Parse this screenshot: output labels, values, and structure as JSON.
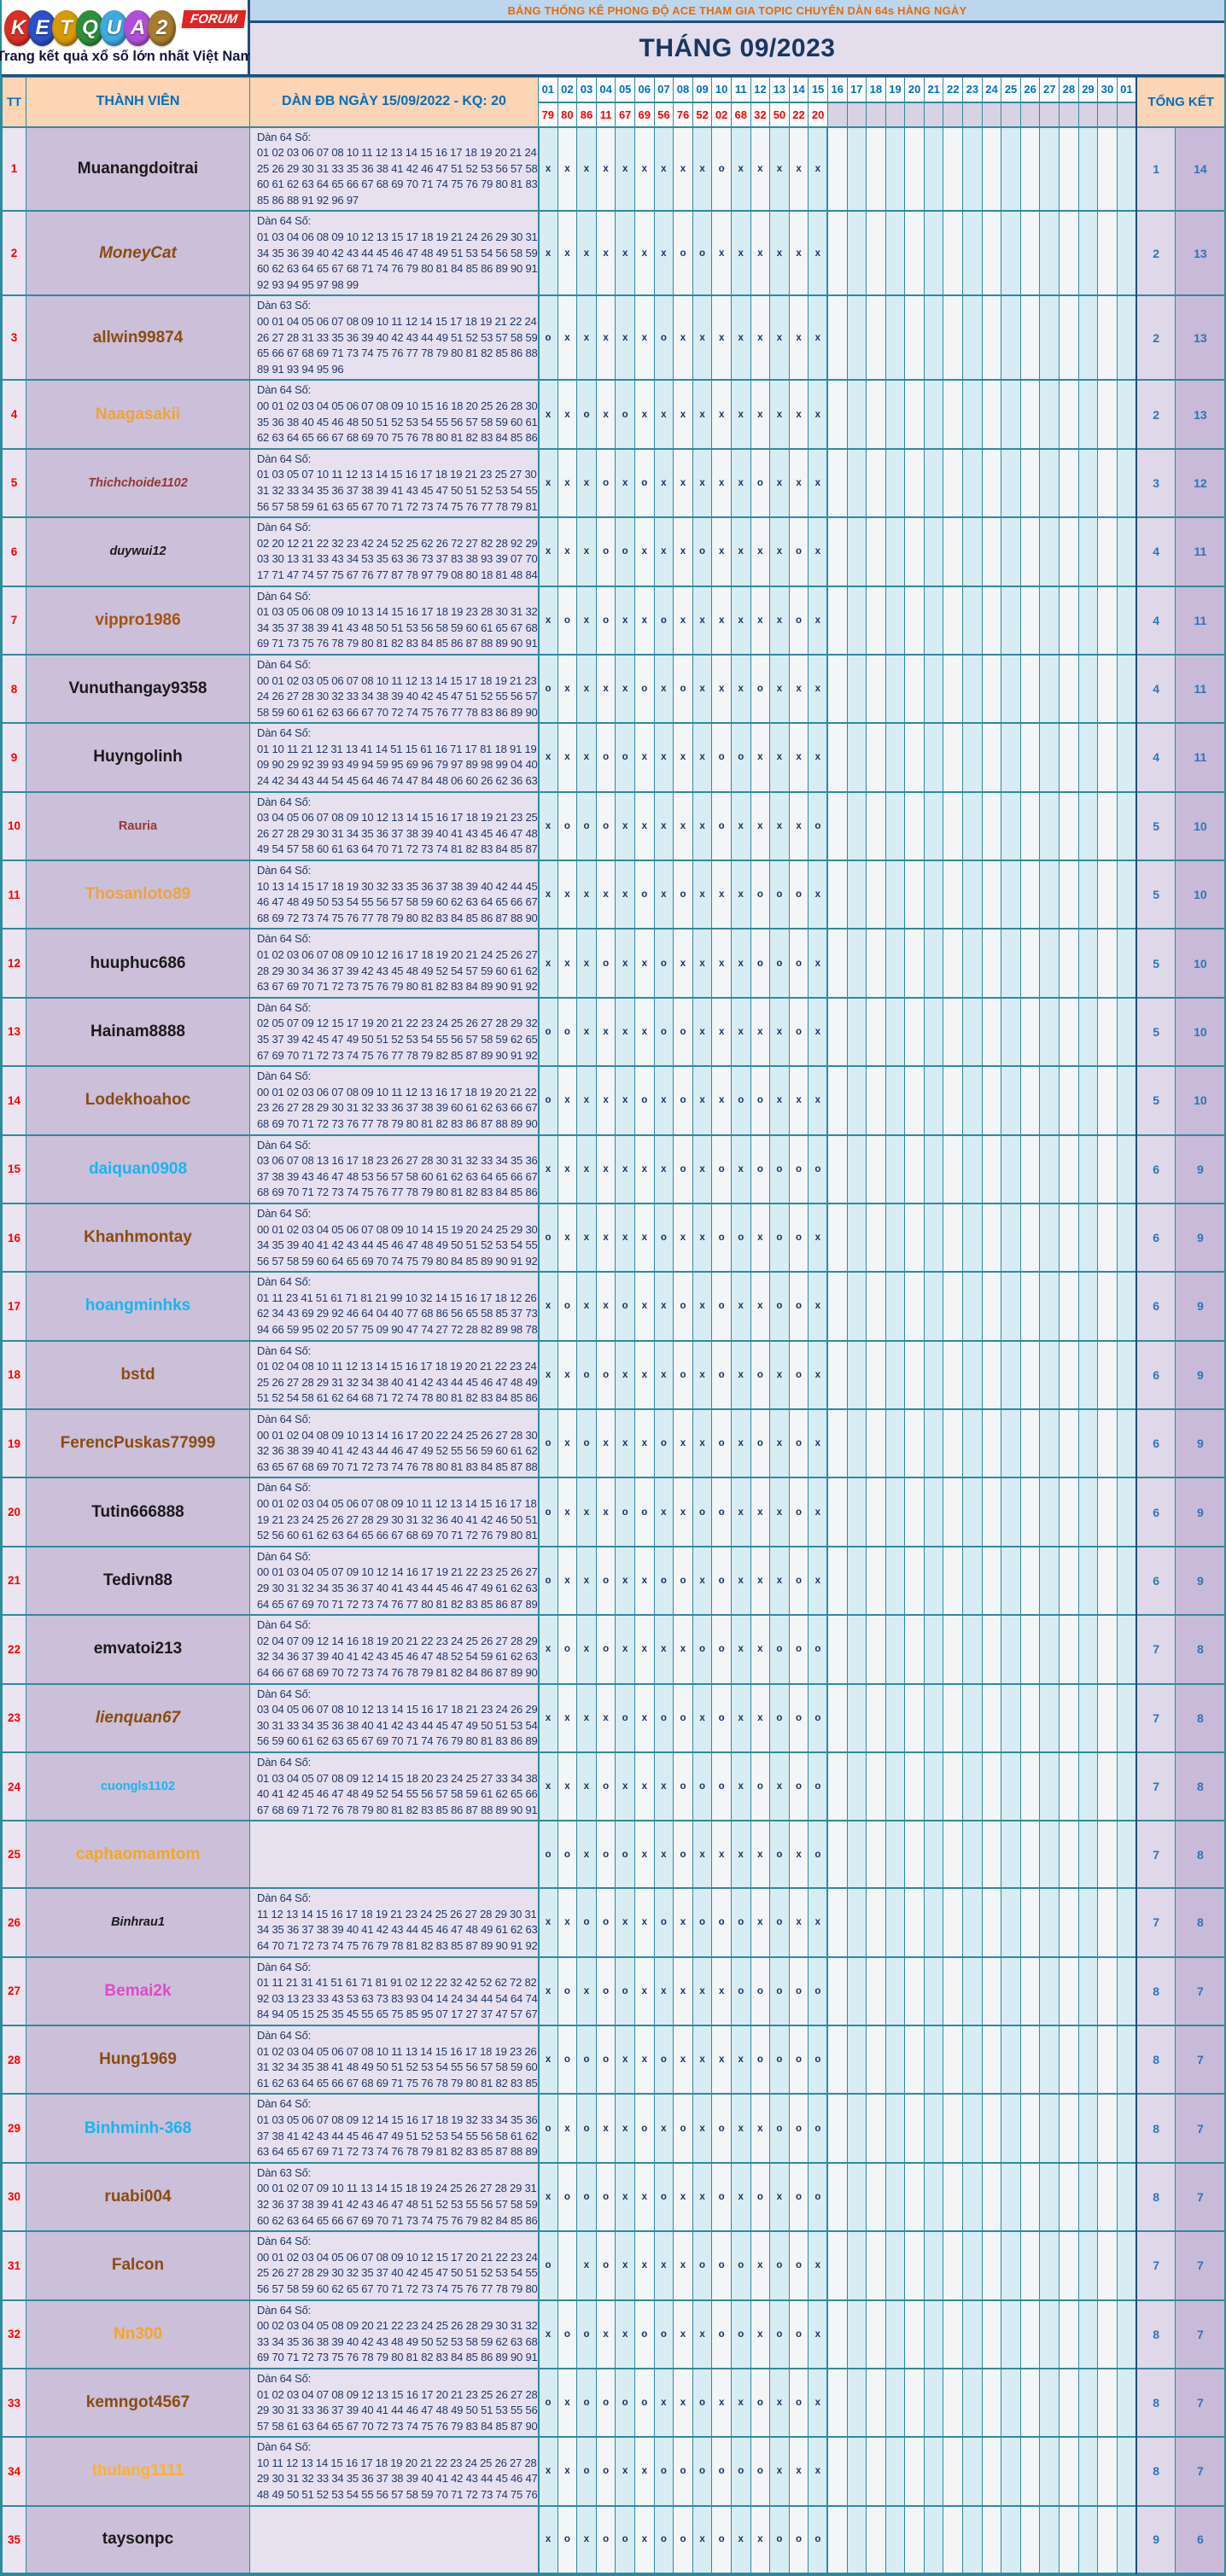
{
  "logo": {
    "brand": "KETQUA2",
    "letters": [
      {
        "ch": "K",
        "color": "#D93025"
      },
      {
        "ch": "E",
        "color": "#2B50C8"
      },
      {
        "ch": "T",
        "color": "#D79A00"
      },
      {
        "ch": "Q",
        "color": "#2E8F3A"
      },
      {
        "ch": "U",
        "color": "#3FA9E0"
      },
      {
        "ch": "A",
        "color": "#B04FD9"
      },
      {
        "ch": "2",
        "color": "#A67C2E"
      }
    ],
    "forum": "FORUM",
    "tagline": "Trang kết quả xổ số lớn nhất Việt Nam"
  },
  "banner": {
    "title": "BẢNG THỐNG KÊ PHONG ĐỘ ACE THAM GIA TOPIC CHUYÊN DÀN 64s HÀNG NGÀY",
    "month": "THÁNG 09/2023"
  },
  "table": {
    "headers": {
      "tt": "TT",
      "member": "THÀNH VIÊN",
      "dan": "DÀN ĐB NGÀY 15/09/2022 - KQ: 20",
      "total": "TỔNG KẾT"
    },
    "days": [
      "01",
      "02",
      "03",
      "04",
      "05",
      "06",
      "07",
      "08",
      "09",
      "10",
      "11",
      "12",
      "13",
      "14",
      "15",
      "16",
      "17",
      "18",
      "19",
      "20",
      "21",
      "22",
      "23",
      "24",
      "25",
      "26",
      "27",
      "28",
      "29",
      "30",
      "01"
    ],
    "results": [
      "79",
      "80",
      "86",
      "11",
      "67",
      "69",
      "56",
      "76",
      "52",
      "02",
      "68",
      "32",
      "50",
      "22",
      "20",
      "",
      "",
      "",
      "",
      "",
      "",
      "",
      "",
      "",
      "",
      "",
      "",
      "",
      "",
      "",
      ""
    ],
    "rows": [
      {
        "tt": "1",
        "name": "Muanangdoitrai",
        "color": "#1a1a1a",
        "italic": false,
        "small": false,
        "label": "Dàn 64 Số:",
        "lines": [
          "01 02 03 06 07 08 10 11 12 13 14 15 16 17 18 19 20 21 24",
          "25 26 29 30 31 33 35 36 38 41 42 46 47 51 52 53 56 57 58",
          "60 61 62 63 64 65 66 67 68 69 70 71 74 75 76 79 80 81 83",
          "85 86 88 91 92 96 97"
        ],
        "marks": "xxxxxxxxxoxxxxx",
        "t1": "1",
        "t2": "14"
      },
      {
        "tt": "2",
        "name": "MoneyCat",
        "color": "#8C4B10",
        "italic": true,
        "small": false,
        "label": "Dàn 64 Số:",
        "lines": [
          "01 03 04 06 08 09 10 12 13 15 17 18 19 21 24 26 29 30 31",
          "34 35 36 39 40 42 43 44 45 46 47 48 49 51 53 54 56 58 59",
          "60 62 63 64 65 67 68 71 74 76 79 80 81 84 85 86 89 90 91",
          "92 93 94 95 97 98 99"
        ],
        "marks": "xxxxxxxooxxxxxx",
        "t1": "2",
        "t2": "13"
      },
      {
        "tt": "3",
        "name": "allwin99874",
        "color": "#8C4B10",
        "italic": false,
        "small": false,
        "label": "Dàn 63 Số:",
        "lines": [
          "00 01 04 05 06 07 08 09 10 11 12 14 15 17 18 19 21 22 24",
          "26 27 28 31 33 35 36 39 40 42 43 44 49 51 52 53 57 58 59",
          "65 66 67 68 69 71 73 74 75 76 77 78 79 80 81 82 85 86 88",
          "89 91 93 94 95 96"
        ],
        "marks": "oxxxxxoxxxxxxxx",
        "t1": "2",
        "t2": "13"
      },
      {
        "tt": "4",
        "name": "Naagasakii",
        "color": "#EDA33F",
        "italic": false,
        "small": false,
        "label": "Dàn 64 Số:",
        "lines": [
          "00 01 02 03 04 05 06 07 08 09 10 15 16 18 20 25 26 28 30",
          "35 36 38 40 45 46 48 50 51 52 53 54 55 56 57 58 59 60 61",
          "62 63 64 65 66 67 68 69 70 75 76 78 80 81 82 83 84 85 86"
        ],
        "marks": "xxoxoxxxxxxxxxx",
        "t1": "2",
        "t2": "13"
      },
      {
        "tt": "5",
        "name": "Thichchoide1102",
        "color": "#953735",
        "italic": true,
        "small": true,
        "label": "Dàn 64 Số:",
        "lines": [
          "01 03 05 07 10 11 12 13 14 15 16 17 18 19 21 23 25 27 30",
          "31 32 33 34 35 36 37 38 39 41 43 45 47 50 51 52 53 54 55",
          "56 57 58 59 61 63 65 67 70 71 72 73 74 75 76 77 78 79 81"
        ],
        "marks": "xxxoxoxxxxxoxxx",
        "t1": "3",
        "t2": "12"
      },
      {
        "tt": "6",
        "name": "duywui12",
        "color": "#1a1a1a",
        "italic": true,
        "small": true,
        "label": "Dàn 64 Số:",
        "lines": [
          "02 20 12 21 22 32 23 42 24 52 25 62 26 72 27 82 28 92 29",
          "03 30 13 31 33 43 34 53 35 63 36 73 37 83 38 93 39 07 70",
          "17 71 47 74 57 75 67 76 77 87 78 97 79 08 80 18 81 48 84"
        ],
        "marks": "xxxooxxxoxxxxox",
        "t1": "4",
        "t2": "11"
      },
      {
        "tt": "7",
        "name": "vippro1986",
        "color": "#A5530F",
        "italic": false,
        "small": false,
        "label": "Dàn 64 Số:",
        "lines": [
          "01 03 05 06 08 09 10 13 14 15 16 17 18 19 23 28 30 31 32",
          "34 35 37 38 39 41 43 48 50 51 53 56 58 59 60 61 65 67 68",
          "69 71 73 75 76 78 79 80 81 82 83 84 85 86 87 88 89 90 91"
        ],
        "marks": "xoxoxxoxxxxxxox",
        "t1": "4",
        "t2": "11"
      },
      {
        "tt": "8",
        "name": "Vunuthangay9358",
        "color": "#1a1a1a",
        "italic": false,
        "small": false,
        "label": "Dàn 64 Số:",
        "lines": [
          "00 01 02 03 05 06 07 08 10 11 12 13 14 15 17 18 19 21 23",
          "24 26 27 28 30 32 33 34 38 39 40 42 45 47 51 52 55 56 57",
          "58 59 60 61 62 63 66 67 70 72 74 75 76 77 78 83 86 89 90"
        ],
        "marks": "oxxxxoxoxxxoxxx",
        "t1": "4",
        "t2": "11"
      },
      {
        "tt": "9",
        "name": "Huyngolinh",
        "color": "#1a1a1a",
        "italic": false,
        "small": false,
        "label": "Dàn 64 Số:",
        "lines": [
          "01 10 11 21 12 31 13 41 14 51 15 61 16 71 17 81 18 91 19",
          "09 90 29 92 39 93 49 94 59 95 69 96 79 97 89 98 99 04 40",
          "24 42 34 43 44 54 45 64 46 74 47 84 48 06 60 26 62 36 63"
        ],
        "marks": "xxxooxxxxooxxxx",
        "t1": "4",
        "t2": "11"
      },
      {
        "tt": "10",
        "name": "Rauria",
        "color": "#953735",
        "italic": false,
        "small": true,
        "label": "Dàn 64 Số:",
        "lines": [
          "03 04 05 06 07 08 09 10 12 13 14 15 16 17 18 19 21 23 25",
          "26 27 28 29 30 31 34 35 36 37 38 39 40 41 43 45 46 47 48",
          "49 54 57 58 60 61 63 64 70 71 72 73 74 81 82 83 84 85 87"
        ],
        "marks": "xoooxxxxxoxxxxo",
        "t1": "5",
        "t2": "10"
      },
      {
        "tt": "11",
        "name": "Thosanloto89",
        "color": "#EDA33F",
        "italic": false,
        "small": false,
        "label": "Dàn 64 Số:",
        "lines": [
          "10 13 14 15 17 18 19 30 32 33 35 36 37 38 39 40 42 44 45",
          "46 47 48 49 50 53 54 55 56 57 58 59 60 62 63 64 65 66 67",
          "68 69 72 73 74 75 76 77 78 79 80 82 83 84 85 86 87 88 90"
        ],
        "marks": "xxxxxoxoxxxooox",
        "t1": "5",
        "t2": "10"
      },
      {
        "tt": "12",
        "name": "huuphuc686",
        "color": "#1a1a1a",
        "italic": false,
        "small": false,
        "label": "Dàn 64 Số:",
        "lines": [
          "01 02 03 06 07 08 09 10 12 16 17 18 19 20 21 24 25 26 27",
          "28 29 30 34 36 37 39 42 43 45 48 49 52 54 57 59 60 61 62",
          "63 67 69 70 71 72 73 75 76 79 80 81 82 83 84 89 90 91 92"
        ],
        "marks": "xxxoxxoxxxxooox",
        "t1": "5",
        "t2": "10"
      },
      {
        "tt": "13",
        "name": "Hainam8888",
        "color": "#1a1a1a",
        "italic": false,
        "small": false,
        "label": "Dàn 64 Số:",
        "lines": [
          "02 05 07 09 12 15 17 19 20 21 22 23 24 25 26 27 28 29 32",
          "35 37 39 42 45 47 49 50 51 52 53 54 55 56 57 58 59 62 65",
          "67 69 70 71 72 73 74 75 76 77 78 79 82 85 87 89 90 91 92"
        ],
        "marks": "ooxxxxooxxxxxox",
        "t1": "5",
        "t2": "10"
      },
      {
        "tt": "14",
        "name": "Lodekhoahoc",
        "color": "#8C4B10",
        "italic": false,
        "small": false,
        "label": "Dàn 64 Số:",
        "lines": [
          "00 01 02 03 06 07 08 09 10 11 12 13 16 17 18 19 20 21 22",
          "23 26 27 28 29 30 31 32 33 36 37 38 39 60 61 62 63 66 67",
          "68 69 70 71 72 73 76 77 78 79 80 81 82 83 86 87 88 89 90"
        ],
        "marks": "oxxxxoxoxxooxxx",
        "t1": "5",
        "t2": "10"
      },
      {
        "tt": "15",
        "name": "daiquan0908",
        "color": "#18B5F0",
        "italic": false,
        "small": false,
        "label": "Dàn 64 Số:",
        "lines": [
          "03 06 07 08 13 16 17 18 23 26 27 28 30 31 32 33 34 35 36",
          "37 38 39 43 46 47 48 53 56 57 58 60 61 62 63 64 65 66 67",
          "68 69 70 71 72 73 74 75 76 77 78 79 80 81 82 83 84 85 86"
        ],
        "marks": "xxxxxxxoxoxoooo",
        "t1": "6",
        "t2": "9"
      },
      {
        "tt": "16",
        "name": "Khanhmontay",
        "color": "#8C4B10",
        "italic": false,
        "small": false,
        "label": "Dàn 64 Số:",
        "lines": [
          "00 01 02 03 04 05 06 07 08 09 10 14 15 19 20 24 25 29 30",
          "34 35 39 40 41 42 43 44 45 46 47 48 49 50 51 52 53 54 55",
          "56 57 58 59 60 64 65 69 70 74 75 79 80 84 85 89 90 91 92"
        ],
        "marks": "oxxxxxoxxooxoox",
        "t1": "6",
        "t2": "9"
      },
      {
        "tt": "17",
        "name": "hoangminhks",
        "color": "#18B5F0",
        "italic": false,
        "small": false,
        "label": "Dàn 64 Số:",
        "lines": [
          "01 11 23 41 51 61 71 81 21 99 10 32 14 15 16 17 18 12 26",
          "62 34 43 69 29 92 46 64 04 40 77 68 86 56 65 58 85 37 73",
          "94 66 59 95 02 20 57 75 09 90 47 74 27 72 28 82 89 98 78"
        ],
        "marks": "xoxxoxxoxoxxoox",
        "t1": "6",
        "t2": "9"
      },
      {
        "tt": "18",
        "name": "bstd",
        "color": "#8C4B10",
        "italic": false,
        "small": false,
        "label": "Dàn 64 Số:",
        "lines": [
          "01 02 04 08 10 11 12 13 14 15 16 17 18 19 20 21 22 23 24",
          "25 26 27 28 29 31 32 34 38 40 41 42 43 44 45 46 47 48 49",
          "51 52 54 58 61 62 64 68 71 72 74 78 80 81 82 83 84 85 86"
        ],
        "marks": "xxooxxxoxoxoxox",
        "t1": "6",
        "t2": "9"
      },
      {
        "tt": "19",
        "name": "FerencPuskas77999",
        "color": "#8C4B10",
        "italic": false,
        "small": false,
        "label": "Dàn 64 Số:",
        "lines": [
          "00 01 02 04 08 09 10 13 14 16 17 20 22 24 25 26 27 28 30",
          "32 36 38 39 40 41 42 43 44 46 47 49 52 55 56 59 60 61 62",
          "63 65 67 68 69 70 71 72 73 74 76 78 80 81 83 84 85 87 88"
        ],
        "marks": "oxoxxxoxxoxoxox",
        "t1": "6",
        "t2": "9"
      },
      {
        "tt": "20",
        "name": "Tutin666888",
        "color": "#1a1a1a",
        "italic": false,
        "small": false,
        "label": "Dàn 64 Số:",
        "lines": [
          "00 01 02 03 04 05 06 07 08 09 10 11 12 13 14 15 16 17 18",
          "19 21 23 24 25 26 27 28 29 30 31 32 36 40 41 42 46 50 51",
          "52 56 60 61 62 63 64 65 66 67 68 69 70 71 72 76 79 80 81"
        ],
        "marks": "oxxxooxxooxxxox",
        "t1": "6",
        "t2": "9"
      },
      {
        "tt": "21",
        "name": "Tedivn88",
        "color": "#1a1a1a",
        "italic": false,
        "small": false,
        "label": "Dàn 64 Số:",
        "lines": [
          "00 01 03 04 05 07 09 10 12 14 16 17 19 21 22 23 25 26 27",
          "29 30 31 32 34 35 36 37 40 41 43 44 45 46 47 49 61 62 63",
          "64 65 67 69 70 71 72 73 74 76 77 80 81 82 83 85 86 87 89"
        ],
        "marks": "oxxoxxooxoxxxox",
        "t1": "6",
        "t2": "9"
      },
      {
        "tt": "22",
        "name": "emvatoi213",
        "color": "#1a1a1a",
        "italic": false,
        "small": false,
        "label": "Dàn 64 Số:",
        "lines": [
          "02 04 07 09 12 14 16 18 19 20 21 22 23 24 25 26 27 28 29",
          "32 34 36 37 39 40 41 42 43 45 46 47 48 52 54 59 61 62 63",
          "64 66 67 68 69 70 72 73 74 76 78 79 81 82 84 86 87 89 90"
        ],
        "marks": "xoxoxxxxooxxooo",
        "t1": "7",
        "t2": "8"
      },
      {
        "tt": "23",
        "name": "lienquan67",
        "color": "#8C4B10",
        "italic": true,
        "small": false,
        "label": "Dàn 64 Số:",
        "lines": [
          "03 04 05 06 07 08 10 12 13 14 15 16 17 18 21 23 24 26 29",
          "30 31 33 34 35 36 38 40 41 42 43 44 45 47 49 50 51 53 54",
          "56 59 60 61 62 63 65 67 69 70 71 74 76 79 80 81 83 86 89"
        ],
        "marks": "xxxxoxooxoxxooo",
        "t1": "7",
        "t2": "8"
      },
      {
        "tt": "24",
        "name": "cuongls1102",
        "color": "#18B5F0",
        "italic": false,
        "small": true,
        "label": "Dàn 64 Số:",
        "lines": [
          "01 03 04 05 07 08 09 12 14 15 18 20 23 24 25 27 33 34 38",
          "40 41 42 45 46 47 48 49 52 54 55 56 57 58 59 61 62 65 66",
          "67 68 69 71 72 76 78 79 80 81 82 83 85 86 87 88 89 90 91"
        ],
        "marks": "xxxoxxxoooxoxoo",
        "t1": "7",
        "t2": "8"
      },
      {
        "tt": "25",
        "name": "caphaomamtom",
        "color": "#F5A623",
        "italic": false,
        "small": false,
        "label": "",
        "lines": [],
        "marks": "ooxooxxoxxxxoxo",
        "t1": "7",
        "t2": "8"
      },
      {
        "tt": "26",
        "name": "Binhrau1",
        "color": "#1a1a1a",
        "italic": true,
        "small": true,
        "label": "Dàn 64 Số:",
        "lines": [
          "11 12 13 14 15 16 17 18 19 21 23 24 25 26 27 28 29 30 31",
          "34 35 36 37 38 39 40 41 42 43 44 45 46 47 48 49 61 62 63",
          "64 70 71 72 73 74 75 76 79 78 81 82 83 85 87 89 90 91 92"
        ],
        "marks": "xxooxxoxoooxoxx",
        "t1": "7",
        "t2": "8"
      },
      {
        "tt": "27",
        "name": "Bemai2k",
        "color": "#E049C9",
        "italic": false,
        "small": false,
        "label": "Dàn 64 Số:",
        "lines": [
          "01 11 21 31 41 51 61 71 81 91 02 12 22 32 42 52 62 72 82",
          "92 03 13 23 33 43 53 63 73 83 93 04 14 24 34 44 54 64 74",
          "84 94 05 15 25 35 45 55 65 75 85 95 07 17 27 37 47 57 67"
        ],
        "marks": "xoxooxxxxxooooo",
        "t1": "8",
        "t2": "7"
      },
      {
        "tt": "28",
        "name": "Hung1969",
        "color": "#8C4B10",
        "italic": false,
        "small": false,
        "label": "Dàn 64 Số:",
        "lines": [
          "01 02 03 04 05 06 07 08 10 11 13 14 15 16 17 18 19 23 26",
          "31 32 34 35 38 41 48 49 50 51 52 53 54 55 56 57 58 59 60",
          "61 62 63 64 65 66 67 68 69 71 75 76 78 79 80 81 82 83 85"
        ],
        "marks": "xoooxxoxxxxoooo",
        "t1": "8",
        "t2": "7"
      },
      {
        "tt": "29",
        "name": "Binhminh-368",
        "color": "#18B5F0",
        "italic": false,
        "small": false,
        "label": "Dàn 64 Số:",
        "lines": [
          "01 03 05 06 07 08 09 12 14 15 16 17 18 19 32 33 34 35 36",
          "37 38 41 42 43 44 45 46 47 49 51 52 53 54 55 56 58 61 62",
          "63 64 65 67 69 71 72 73 74 76 78 79 81 82 83 85 87 88 89"
        ],
        "marks": "oxoxxoxoxoxxooo",
        "t1": "8",
        "t2": "7"
      },
      {
        "tt": "30",
        "name": "ruabi004",
        "color": "#8C4B10",
        "italic": false,
        "small": false,
        "label": "Dàn 63 Số:",
        "lines": [
          "00 01 02 07 09 10 11 13 14 15 18 19 24 25 26 27 28 29 31",
          "32 36 37 38 39 41 42 43 46 47 48 51 52 53 55 56 57 58 59",
          "60 62 63 64 65 66 67 69 70 71 73 74 75 76 79 82 84 85 86"
        ],
        "marks": "xoooxxoxxoxoxoo",
        "t1": "8",
        "t2": "7"
      },
      {
        "tt": "31",
        "name": "Falcon",
        "color": "#8C4B10",
        "italic": false,
        "small": false,
        "label": "Dàn 64 Số:",
        "lines": [
          "00 01 02 03 04 05 06 07 08 09 10 12 15 17 20 21 22 23 24",
          "25 26 27 28 29 30 32 35 37 40 42 45 47 50 51 52 53 54 55",
          "56 57 58 59 60 62 65 67 70 71 72 73 74 75 76 77 78 79 80"
        ],
        "marks": "o.xoxxxxoooxoox",
        "t1": "7",
        "t2": "7"
      },
      {
        "tt": "32",
        "name": "Nn300",
        "color": "#F5A623",
        "italic": false,
        "small": false,
        "label": "Dàn 64 Số:",
        "lines": [
          "00 02 03 04 05 08 09 20 21 22 23 24 25 26 28 29 30 31 32",
          "33 34 35 36 38 39 40 42 43 48 49 50 52 53 58 59 62 63 68",
          "69 70 71 72 73 75 76 78 79 80 81 82 83 84 85 86 89 90 91"
        ],
        "marks": "xooxxooxxooxoox",
        "t1": "8",
        "t2": "7"
      },
      {
        "tt": "33",
        "name": "kemngot4567",
        "color": "#8C4B10",
        "italic": false,
        "small": false,
        "label": "Dàn 64 Số:",
        "lines": [
          "01 02 03 04 07 08 09 12 13 15 16 17 20 21 23 25 26 27 28",
          "29 30 31 33 36 37 39 40 41 44 46 47 48 49 50 51 53 55 56",
          "57 58 61 63 64 65 67 70 72 73 74 75 76 79 83 84 85 87 90"
        ],
        "marks": "oxooooxxoxxoxox",
        "t1": "8",
        "t2": "7"
      },
      {
        "tt": "34",
        "name": "thulang1111",
        "color": "#FFB02E",
        "italic": false,
        "small": false,
        "label": "Dàn 64 Số:",
        "lines": [
          "10 11 12 13 14 15 16 17 18 19 20 21 22 23 24 25 26 27 28",
          "29 30 31 32 33 34 35 36 37 38 39 40 41 42 43 44 45 46 47",
          "48 49 50 51 52 53 54 55 56 57 58 59 70 71 72 73 74 75 76"
        ],
        "marks": "xxooxxooooooxxx",
        "t1": "8",
        "t2": "7"
      },
      {
        "tt": "35",
        "name": "taysonpc",
        "color": "#1a1a1a",
        "italic": false,
        "small": false,
        "label": "",
        "lines": [],
        "marks": "xoxooxooxoxxooo",
        "t1": "9",
        "t2": "6"
      }
    ]
  },
  "colors": {
    "strip_bg": "#BCD6EE",
    "strip_text": "#E36C0A",
    "month_bg": "#E3DDEC",
    "month_text": "#17375E",
    "header_bg": "#FBD5B5",
    "header_text": "#0070C0",
    "result_text": "#FF0000",
    "result_blank": "#D9D2E2",
    "grid": "#2E8B9E",
    "dark": "#1F4E79",
    "tt_bg": "#EAE5F1",
    "name_bg": "#CBBFD9",
    "nums_bg": "#E6E0EF",
    "nums_text": "#1F3864",
    "mark_odd": "#D8ECF4",
    "mark_even": "#F3F5F6",
    "mark_text": "#17375E",
    "t1_bg": "#DFD8E8",
    "t2_bg": "#C9BAD9",
    "total_text": "#2E75B6"
  }
}
